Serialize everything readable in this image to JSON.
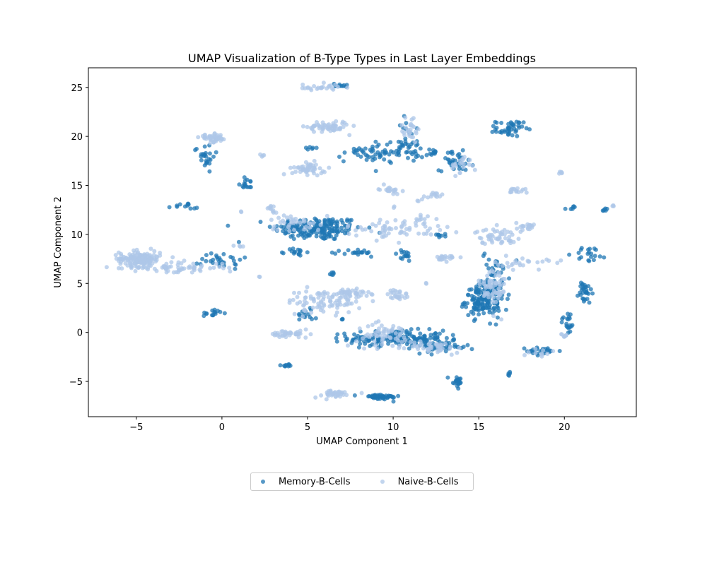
{
  "chart_data": {
    "type": "scatter",
    "title": "UMAP Visualization of B-Type Types in Last Layer Embeddings",
    "xlabel": "UMAP Component 1",
    "ylabel": "UMAP Component 2",
    "xlim": [
      -7.8,
      24.2
    ],
    "ylim": [
      -8.6,
      27.0
    ],
    "xticks": [
      -5,
      0,
      5,
      10,
      15,
      20
    ],
    "yticks": [
      -5,
      0,
      5,
      10,
      15,
      20,
      25
    ],
    "xtick_labels": [
      "−5",
      "0",
      "5",
      "10",
      "15",
      "20"
    ],
    "ytick_labels": [
      "−5",
      "0",
      "5",
      "10",
      "15",
      "20",
      "25"
    ],
    "grid": false,
    "legend_position": "bottom-center",
    "series": [
      {
        "name": "Memory-B-Cells",
        "color": "#1f77b4",
        "clusters": [
          {
            "x": 5.6,
            "y": 10.6,
            "sx": 1.3,
            "sy": 0.6,
            "n": 180
          },
          {
            "x": 10.2,
            "y": -0.6,
            "sx": 1.4,
            "sy": 0.4,
            "n": 170
          },
          {
            "x": 15.2,
            "y": 3.2,
            "sx": 0.5,
            "sy": 0.8,
            "n": 140
          },
          {
            "x": 16.0,
            "y": 5.2,
            "sx": 0.4,
            "sy": 1.6,
            "n": 60
          },
          {
            "x": 9.6,
            "y": 18.4,
            "sx": 1.2,
            "sy": 0.5,
            "n": 80
          },
          {
            "x": 16.8,
            "y": 20.8,
            "sx": 0.4,
            "sy": 0.4,
            "n": 45
          },
          {
            "x": 9.2,
            "y": -6.6,
            "sx": 0.6,
            "sy": 0.15,
            "n": 45
          },
          {
            "x": 13.7,
            "y": 17.5,
            "sx": 0.5,
            "sy": 0.5,
            "n": 35
          },
          {
            "x": 12.8,
            "y": -1.5,
            "sx": 0.8,
            "sy": 0.3,
            "n": 40
          },
          {
            "x": 21.2,
            "y": 4.0,
            "sx": 0.2,
            "sy": 0.6,
            "n": 30
          },
          {
            "x": 13.7,
            "y": -5.0,
            "sx": 0.2,
            "sy": 0.4,
            "n": 20
          },
          {
            "x": -1.0,
            "y": 18.0,
            "sx": 0.3,
            "sy": 0.6,
            "n": 25
          },
          {
            "x": 0.0,
            "y": 7.5,
            "sx": 0.6,
            "sy": 0.5,
            "n": 30
          },
          {
            "x": 18.8,
            "y": -1.9,
            "sx": 0.5,
            "sy": 0.2,
            "n": 25
          },
          {
            "x": 20.2,
            "y": 1.0,
            "sx": 0.2,
            "sy": 0.6,
            "n": 20
          },
          {
            "x": -0.5,
            "y": 2.0,
            "sx": 0.3,
            "sy": 0.2,
            "n": 15
          },
          {
            "x": 4.3,
            "y": 8.2,
            "sx": 0.3,
            "sy": 0.2,
            "n": 15
          },
          {
            "x": 8.0,
            "y": 8.1,
            "sx": 0.5,
            "sy": 0.2,
            "n": 20
          },
          {
            "x": 12.2,
            "y": 18.4,
            "sx": 0.2,
            "sy": 0.2,
            "n": 8
          },
          {
            "x": 11.0,
            "y": 20.0,
            "sx": 0.3,
            "sy": 1.0,
            "n": 20
          },
          {
            "x": 3.8,
            "y": -3.4,
            "sx": 0.3,
            "sy": 0.1,
            "n": 10
          },
          {
            "x": 10.6,
            "y": 7.8,
            "sx": 0.3,
            "sy": 0.3,
            "n": 15
          },
          {
            "x": 1.5,
            "y": 15.2,
            "sx": 0.3,
            "sy": 0.3,
            "n": 15
          },
          {
            "x": 21.5,
            "y": 8.0,
            "sx": 0.5,
            "sy": 0.4,
            "n": 20
          },
          {
            "x": 6.9,
            "y": 25.2,
            "sx": 0.3,
            "sy": 0.1,
            "n": 10
          },
          {
            "x": -2.0,
            "y": 12.8,
            "sx": 0.4,
            "sy": 0.2,
            "n": 12
          },
          {
            "x": 16.8,
            "y": -4.2,
            "sx": 0.05,
            "sy": 0.1,
            "n": 5
          },
          {
            "x": 22.4,
            "y": 12.5,
            "sx": 0.1,
            "sy": 0.1,
            "n": 6
          },
          {
            "x": 20.4,
            "y": 12.7,
            "sx": 0.2,
            "sy": 0.1,
            "n": 6
          },
          {
            "x": 12.8,
            "y": 9.9,
            "sx": 0.2,
            "sy": 0.1,
            "n": 8
          },
          {
            "x": 5.2,
            "y": 18.8,
            "sx": 0.2,
            "sy": 0.1,
            "n": 6
          },
          {
            "x": 6.4,
            "y": 6.0,
            "sx": 0.2,
            "sy": 0.1,
            "n": 6
          },
          {
            "x": 7.0,
            "y": 1.4,
            "sx": 0.05,
            "sy": 0.05,
            "n": 3
          },
          {
            "x": 5.0,
            "y": 2.0,
            "sx": 0.3,
            "sy": 0.5,
            "n": 15
          }
        ]
      },
      {
        "name": "Naive-B-Cells",
        "color": "#aec7e8",
        "clusters": [
          {
            "x": -4.8,
            "y": 7.5,
            "sx": 0.6,
            "sy": 0.4,
            "n": 150
          },
          {
            "x": -2.5,
            "y": 6.6,
            "sx": 1.3,
            "sy": 0.3,
            "n": 60
          },
          {
            "x": -0.5,
            "y": 19.8,
            "sx": 0.4,
            "sy": 0.2,
            "n": 45
          },
          {
            "x": 6.2,
            "y": 21.0,
            "sx": 0.6,
            "sy": 0.3,
            "n": 60
          },
          {
            "x": 5.1,
            "y": 16.7,
            "sx": 0.5,
            "sy": 0.3,
            "n": 50
          },
          {
            "x": 5.6,
            "y": 25.0,
            "sx": 0.6,
            "sy": 0.2,
            "n": 25
          },
          {
            "x": 4.0,
            "y": -0.2,
            "sx": 0.6,
            "sy": 0.2,
            "n": 40
          },
          {
            "x": 6.0,
            "y": 3.2,
            "sx": 1.1,
            "sy": 0.6,
            "n": 90
          },
          {
            "x": 7.5,
            "y": 4.0,
            "sx": 0.6,
            "sy": 0.2,
            "n": 40
          },
          {
            "x": 9.8,
            "y": 14.6,
            "sx": 0.3,
            "sy": 0.2,
            "n": 20
          },
          {
            "x": 10.3,
            "y": 3.8,
            "sx": 0.3,
            "sy": 0.3,
            "n": 25
          },
          {
            "x": 16.0,
            "y": 9.8,
            "sx": 0.6,
            "sy": 0.4,
            "n": 50
          },
          {
            "x": 15.8,
            "y": 4.5,
            "sx": 0.4,
            "sy": 1.2,
            "n": 60
          },
          {
            "x": 13.2,
            "y": 7.6,
            "sx": 0.3,
            "sy": 0.2,
            "n": 20
          },
          {
            "x": 17.8,
            "y": 10.8,
            "sx": 0.3,
            "sy": 0.2,
            "n": 20
          },
          {
            "x": 17.5,
            "y": 7.0,
            "sx": 0.8,
            "sy": 0.3,
            "n": 25
          },
          {
            "x": 17.3,
            "y": 14.5,
            "sx": 0.3,
            "sy": 0.2,
            "n": 15
          },
          {
            "x": 12.5,
            "y": 14.0,
            "sx": 0.3,
            "sy": 0.15,
            "n": 12
          },
          {
            "x": 10.2,
            "y": 10.6,
            "sx": 1.5,
            "sy": 0.5,
            "n": 60
          },
          {
            "x": 4.2,
            "y": 11.3,
            "sx": 0.8,
            "sy": 0.5,
            "n": 35
          },
          {
            "x": 6.5,
            "y": -6.3,
            "sx": 0.6,
            "sy": 0.2,
            "n": 35
          },
          {
            "x": 9.5,
            "y": -0.3,
            "sx": 0.8,
            "sy": 0.6,
            "n": 60
          },
          {
            "x": 12.5,
            "y": -1.5,
            "sx": 0.8,
            "sy": 0.3,
            "n": 40
          },
          {
            "x": 11.0,
            "y": 20.8,
            "sx": 0.3,
            "sy": 0.7,
            "n": 25
          },
          {
            "x": 14.0,
            "y": 17.0,
            "sx": 0.3,
            "sy": 0.5,
            "n": 20
          },
          {
            "x": 20.0,
            "y": -0.3,
            "sx": 0.2,
            "sy": 0.2,
            "n": 8
          },
          {
            "x": 2.8,
            "y": 12.6,
            "sx": 0.2,
            "sy": 0.2,
            "n": 10
          },
          {
            "x": 19.8,
            "y": 16.3,
            "sx": 0.1,
            "sy": 0.1,
            "n": 5
          },
          {
            "x": 22.9,
            "y": 12.9,
            "sx": 0.05,
            "sy": 0.05,
            "n": 3
          },
          {
            "x": 11.8,
            "y": 11.5,
            "sx": 0.3,
            "sy": 0.4,
            "n": 10
          },
          {
            "x": 2.3,
            "y": 18.1,
            "sx": 0.1,
            "sy": 0.1,
            "n": 4
          },
          {
            "x": 11.6,
            "y": 13.5,
            "sx": 0.1,
            "sy": 0.1,
            "n": 3
          },
          {
            "x": 2.2,
            "y": 5.7,
            "sx": 0.05,
            "sy": 0.05,
            "n": 2
          },
          {
            "x": 11.9,
            "y": 5.0,
            "sx": 0.05,
            "sy": 0.05,
            "n": 2
          },
          {
            "x": 1.2,
            "y": 12.3,
            "sx": 0.05,
            "sy": 0.05,
            "n": 2
          },
          {
            "x": 10.0,
            "y": 12.7,
            "sx": 0.05,
            "sy": 0.05,
            "n": 2
          },
          {
            "x": 18.5,
            "y": -2.0,
            "sx": 0.4,
            "sy": 0.2,
            "n": 10
          },
          {
            "x": 1.0,
            "y": 8.8,
            "sx": 0.1,
            "sy": 0.1,
            "n": 4
          }
        ]
      }
    ]
  }
}
